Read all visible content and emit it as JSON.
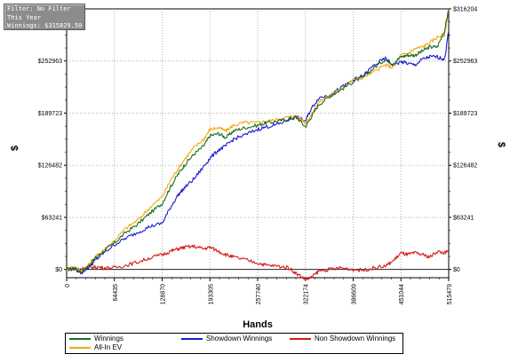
{
  "filter_panel": {
    "line1": "Filter: No Filter",
    "line2": "This Year",
    "line3": "Winnings: $315829.50"
  },
  "chart_data": {
    "type": "line",
    "title": "",
    "xlabel": "Hands",
    "ylabel": "$",
    "ylabel_right": "$",
    "xlim": [
      0,
      515479
    ],
    "ylim": [
      -10000,
      316204
    ],
    "x_ticks": [
      0,
      64435,
      128870,
      193305,
      257740,
      322174,
      386609,
      451044,
      515479
    ],
    "x_tick_labels": [
      "0",
      "64435",
      "128870",
      "193305",
      "257740",
      "322174",
      "386609",
      "451044",
      "515479"
    ],
    "y_ticks": [
      0,
      63241,
      126482,
      189723,
      252963,
      316204
    ],
    "y_tick_labels_left": [
      "$0",
      "$63241",
      "$126482",
      "$189723",
      "$252963"
    ],
    "y_tick_labels_right": [
      "$0",
      "$63241",
      "$126482",
      "$189723",
      "$252963",
      "$316204"
    ],
    "grid": true,
    "legend_position": "bottom",
    "x": [
      0,
      10000,
      20000,
      30000,
      40000,
      50000,
      64435,
      80000,
      96000,
      112000,
      128870,
      140000,
      150000,
      160000,
      172000,
      185000,
      193305,
      205000,
      215000,
      225000,
      240000,
      257740,
      270000,
      285000,
      300000,
      310000,
      322174,
      330000,
      340000,
      355000,
      370000,
      386609,
      400000,
      415000,
      430000,
      440000,
      451044,
      460000,
      470000,
      480000,
      490000,
      500000,
      510000,
      515479
    ],
    "series": [
      {
        "name": "Winnings",
        "color": "#1b6e1b",
        "values": [
          0,
          2000,
          -3000,
          5000,
          15000,
          22000,
          32000,
          45000,
          55000,
          68000,
          80000,
          100000,
          115000,
          128000,
          140000,
          150000,
          162000,
          165000,
          160000,
          168000,
          172000,
          175000,
          178000,
          180000,
          183000,
          185000,
          173000,
          185000,
          200000,
          210000,
          218000,
          228000,
          233000,
          245000,
          255000,
          250000,
          258000,
          260000,
          260000,
          265000,
          270000,
          270000,
          290000,
          316204
        ]
      },
      {
        "name": "All-In EV",
        "color": "#f2a91c",
        "values": [
          0,
          3000,
          -2000,
          6000,
          16000,
          24000,
          35000,
          50000,
          60000,
          75000,
          88000,
          108000,
          122000,
          135000,
          148000,
          158000,
          170000,
          172000,
          168000,
          175000,
          178000,
          178000,
          180000,
          182000,
          185000,
          186000,
          178000,
          187000,
          203000,
          212000,
          220000,
          230000,
          233000,
          240000,
          248000,
          245000,
          260000,
          262000,
          268000,
          270000,
          275000,
          282000,
          285000,
          316000
        ]
      },
      {
        "name": "Showdown Winnings",
        "color": "#1a1ad6",
        "values": [
          0,
          1000,
          -4000,
          3000,
          12000,
          20000,
          30000,
          38000,
          45000,
          52000,
          56000,
          75000,
          90000,
          100000,
          110000,
          125000,
          135000,
          145000,
          150000,
          158000,
          163000,
          170000,
          173000,
          176000,
          182000,
          185000,
          180000,
          195000,
          208000,
          212000,
          220000,
          230000,
          235000,
          248000,
          256000,
          248000,
          252000,
          250000,
          248000,
          255000,
          258000,
          258000,
          255000,
          290000
        ]
      },
      {
        "name": "Non Showdown Winnings",
        "color": "#d61a1a",
        "values": [
          0,
          1000,
          1000,
          2000,
          3000,
          2000,
          2000,
          5000,
          9000,
          14000,
          18000,
          22000,
          25000,
          27000,
          28000,
          25000,
          27000,
          22000,
          18000,
          15000,
          12000,
          8000,
          5000,
          4000,
          2000,
          -5000,
          -12000,
          -10000,
          -2000,
          0,
          2000,
          0,
          -1000,
          2000,
          4000,
          10000,
          20000,
          18000,
          20000,
          18000,
          15000,
          22000,
          20000,
          22000
        ]
      }
    ]
  },
  "legend": {
    "items": [
      {
        "label": "Winnings",
        "color": "#1b6e1b"
      },
      {
        "label": "Showdown Winnings",
        "color": "#1a1ad6"
      },
      {
        "label": "Non Showdown Winnings",
        "color": "#d61a1a"
      },
      {
        "label": "All-In EV",
        "color": "#f2a91c"
      }
    ]
  }
}
